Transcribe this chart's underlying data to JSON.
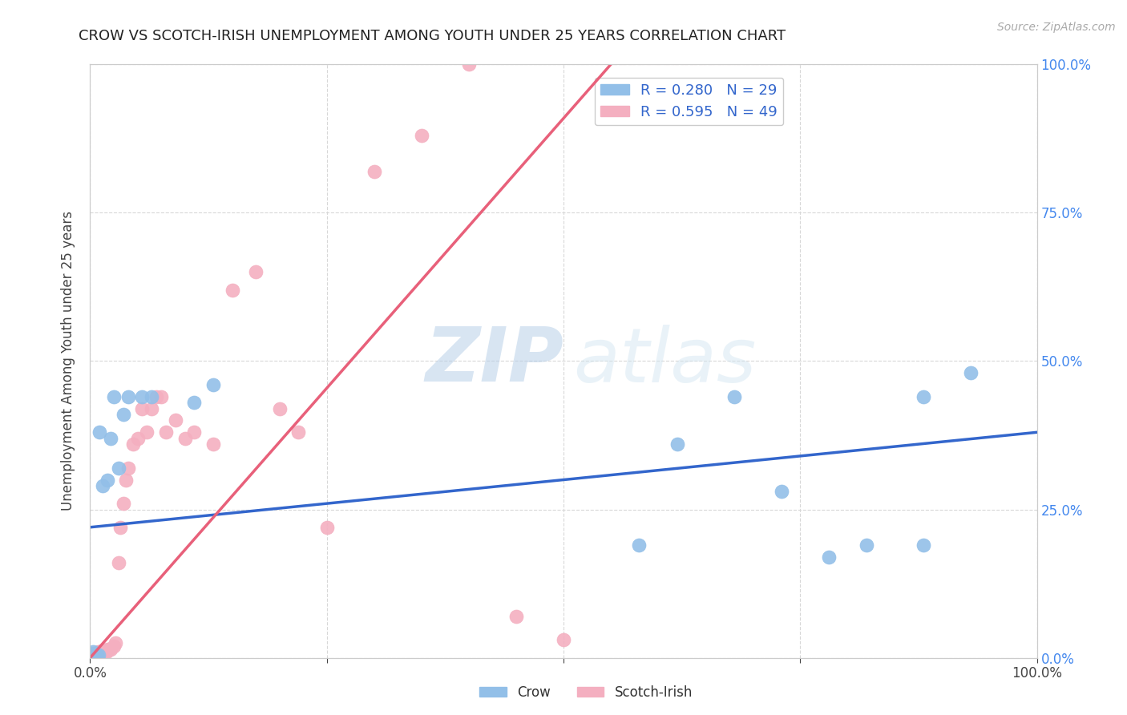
{
  "title": "CROW VS SCOTCH-IRISH UNEMPLOYMENT AMONG YOUTH UNDER 25 YEARS CORRELATION CHART",
  "source": "Source: ZipAtlas.com",
  "ylabel": "Unemployment Among Youth under 25 years",
  "watermark_zip": "ZIP",
  "watermark_atlas": "atlas",
  "crow_R": 0.28,
  "crow_N": 29,
  "scotch_R": 0.595,
  "scotch_N": 49,
  "crow_color": "#92bfe8",
  "scotch_color": "#f4afc0",
  "crow_line_color": "#3366cc",
  "scotch_line_color": "#e8607a",
  "background_color": "#ffffff",
  "grid_color": "#d8d8d8",
  "crow_x": [
    0.002,
    0.003,
    0.004,
    0.005,
    0.006,
    0.007,
    0.008,
    0.009,
    0.01,
    0.013,
    0.018,
    0.022,
    0.025,
    0.03,
    0.035,
    0.04,
    0.055,
    0.065,
    0.11,
    0.13,
    0.58,
    0.62,
    0.68,
    0.73,
    0.78,
    0.82,
    0.88,
    0.88,
    0.93
  ],
  "crow_y": [
    0.005,
    0.01,
    0.005,
    0.008,
    0.005,
    0.005,
    0.002,
    0.005,
    0.38,
    0.29,
    0.3,
    0.37,
    0.44,
    0.32,
    0.41,
    0.44,
    0.44,
    0.44,
    0.43,
    0.46,
    0.19,
    0.36,
    0.44,
    0.28,
    0.17,
    0.19,
    0.19,
    0.44,
    0.48
  ],
  "scotch_x": [
    0.001,
    0.002,
    0.003,
    0.004,
    0.005,
    0.006,
    0.007,
    0.008,
    0.009,
    0.01,
    0.011,
    0.012,
    0.013,
    0.014,
    0.015,
    0.016,
    0.017,
    0.018,
    0.02,
    0.022,
    0.025,
    0.027,
    0.03,
    0.032,
    0.035,
    0.038,
    0.04,
    0.045,
    0.05,
    0.055,
    0.06,
    0.065,
    0.07,
    0.075,
    0.08,
    0.09,
    0.1,
    0.11,
    0.13,
    0.15,
    0.175,
    0.2,
    0.22,
    0.25,
    0.3,
    0.35,
    0.4,
    0.45,
    0.5
  ],
  "scotch_y": [
    0.005,
    0.008,
    0.005,
    0.005,
    0.008,
    0.005,
    0.005,
    0.008,
    0.01,
    0.01,
    0.01,
    0.01,
    0.012,
    0.012,
    0.012,
    0.01,
    0.01,
    0.015,
    0.015,
    0.015,
    0.02,
    0.025,
    0.16,
    0.22,
    0.26,
    0.3,
    0.32,
    0.36,
    0.37,
    0.42,
    0.38,
    0.42,
    0.44,
    0.44,
    0.38,
    0.4,
    0.37,
    0.38,
    0.36,
    0.62,
    0.65,
    0.42,
    0.38,
    0.22,
    0.82,
    0.88,
    1.0,
    0.07,
    0.03
  ],
  "xlim": [
    0.0,
    1.0
  ],
  "ylim": [
    0.0,
    1.0
  ],
  "xtick_positions": [
    0.0,
    0.25,
    0.5,
    0.75,
    1.0
  ],
  "xtick_labels": [
    "0.0%",
    "",
    "",
    "",
    "100.0%"
  ],
  "ytick_positions": [
    0.0,
    0.25,
    0.5,
    0.75,
    1.0
  ],
  "right_ytick_labels": [
    "0.0%",
    "25.0%",
    "50.0%",
    "75.0%",
    "100.0%"
  ],
  "title_color": "#222222",
  "axis_label_color": "#444444",
  "tick_color": "#444444",
  "right_tick_color": "#4488ee"
}
